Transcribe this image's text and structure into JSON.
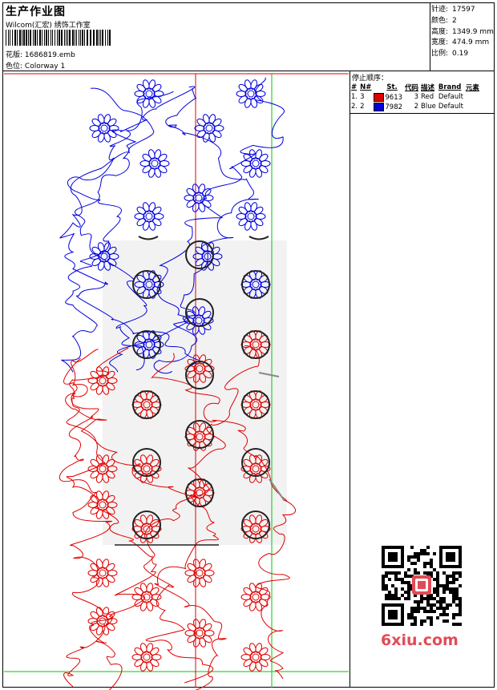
{
  "header": {
    "title": "生产作业图",
    "company": "Wilcom(汇宏) 绣饰工作室",
    "design_label": "花版:",
    "design_value": "1686819.emb",
    "colorway_label": "色位:",
    "colorway_value": "Colorway 1"
  },
  "stats": [
    {
      "label": "针迹:",
      "value": "17597"
    },
    {
      "label": "颜色:",
      "value": "2"
    },
    {
      "label": "高度:",
      "value": "1349.9 mm"
    },
    {
      "label": "宽度:",
      "value": "474.9 mm"
    },
    {
      "label": "比例:",
      "value": "0.19"
    }
  ],
  "stop_sequence": {
    "title": "停止顺序：",
    "headers": [
      "#",
      "N#",
      "St.",
      "代码",
      "描述",
      "Brand",
      "元素"
    ],
    "rows": [
      {
        "index": "1.",
        "n": "3",
        "color": "#e00000",
        "st": "9613",
        "code": "3",
        "desc": "Red",
        "brand": "Default"
      },
      {
        "index": "2.",
        "n": "2",
        "color": "#0000e0",
        "st": "7982",
        "code": "2",
        "desc": "Blue",
        "brand": "Default"
      }
    ]
  },
  "watermark": "6xiu.com",
  "colors": {
    "red_thread": "#e00000",
    "blue_thread": "#0000e0",
    "guide_green": "#00c800"
  }
}
